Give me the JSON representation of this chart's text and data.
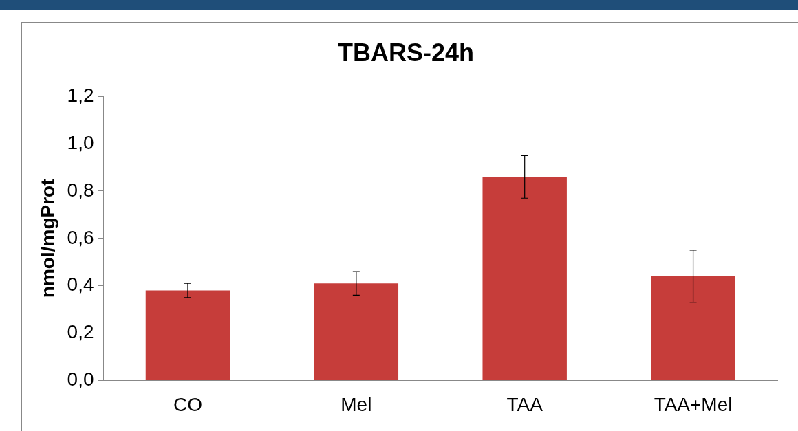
{
  "chart_data": {
    "type": "bar",
    "title": "TBARS-24h",
    "ylabel": "nmol/mgProt",
    "categories": [
      "CO",
      "Mel",
      "TAA",
      "TAA+Mel"
    ],
    "values": [
      0.38,
      0.41,
      0.86,
      0.44
    ],
    "errors": [
      0.03,
      0.05,
      0.09,
      0.11
    ],
    "color": "#c63d3a",
    "ylim": [
      0,
      1.2
    ],
    "yticks": [
      {
        "value": 0,
        "label": "0,0"
      },
      {
        "value": 0.2,
        "label": "0,2"
      },
      {
        "value": 0.4,
        "label": "0,4"
      },
      {
        "value": 0.6,
        "label": "0,6"
      },
      {
        "value": 0.8,
        "label": "0,8"
      },
      {
        "value": 1.0,
        "label": "1,0"
      },
      {
        "value": 1.2,
        "label": "1,2"
      }
    ],
    "grid": false,
    "legend": false
  }
}
